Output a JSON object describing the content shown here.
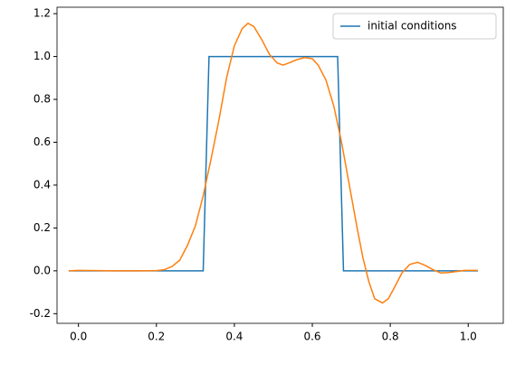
{
  "chart_data": {
    "type": "line",
    "xlim": [
      -0.055,
      1.09
    ],
    "ylim": [
      -0.245,
      1.23
    ],
    "xticks": [
      {
        "value": 0,
        "label": "0.0"
      },
      0.2,
      0.4,
      0.6,
      0.8,
      {
        "value": 1,
        "label": "1.0"
      }
    ],
    "yticks": [
      -0.2,
      {
        "value": 0,
        "label": "0.0"
      },
      0.2,
      0.4,
      0.6,
      0.8,
      {
        "value": 1,
        "label": "1.0"
      },
      1.2
    ],
    "legend": "upper right",
    "series": [
      {
        "name": "initial conditions",
        "color": "#1f77b4",
        "x": [
          -0.025,
          0.32,
          0.335,
          0.665,
          0.68,
          1.025
        ],
        "values": [
          0,
          0,
          1,
          1,
          0,
          0
        ]
      },
      {
        "color": "#ff7f0e",
        "x": [
          -0.025,
          0.0,
          0.05,
          0.1,
          0.15,
          0.2,
          0.22,
          0.24,
          0.26,
          0.28,
          0.3,
          0.32,
          0.34,
          0.36,
          0.38,
          0.4,
          0.42,
          0.435,
          0.45,
          0.47,
          0.49,
          0.51,
          0.525,
          0.54,
          0.56,
          0.58,
          0.6,
          0.615,
          0.635,
          0.655,
          0.675,
          0.695,
          0.715,
          0.73,
          0.745,
          0.76,
          0.78,
          0.795,
          0.81,
          0.83,
          0.85,
          0.87,
          0.89,
          0.91,
          0.93,
          0.95,
          0.97,
          0.99,
          1.025
        ],
        "values": [
          0,
          0.002,
          0.001,
          0,
          0,
          0.001,
          0.005,
          0.02,
          0.05,
          0.12,
          0.21,
          0.35,
          0.52,
          0.7,
          0.9,
          1.05,
          1.13,
          1.155,
          1.14,
          1.08,
          1.01,
          0.97,
          0.96,
          0.97,
          0.985,
          0.995,
          0.99,
          0.96,
          0.89,
          0.77,
          0.6,
          0.4,
          0.2,
          0.06,
          -0.05,
          -0.13,
          -0.15,
          -0.13,
          -0.08,
          -0.01,
          0.03,
          0.04,
          0.025,
          0.005,
          -0.01,
          -0.008,
          -0.003,
          0.002,
          0.002
        ]
      }
    ]
  }
}
